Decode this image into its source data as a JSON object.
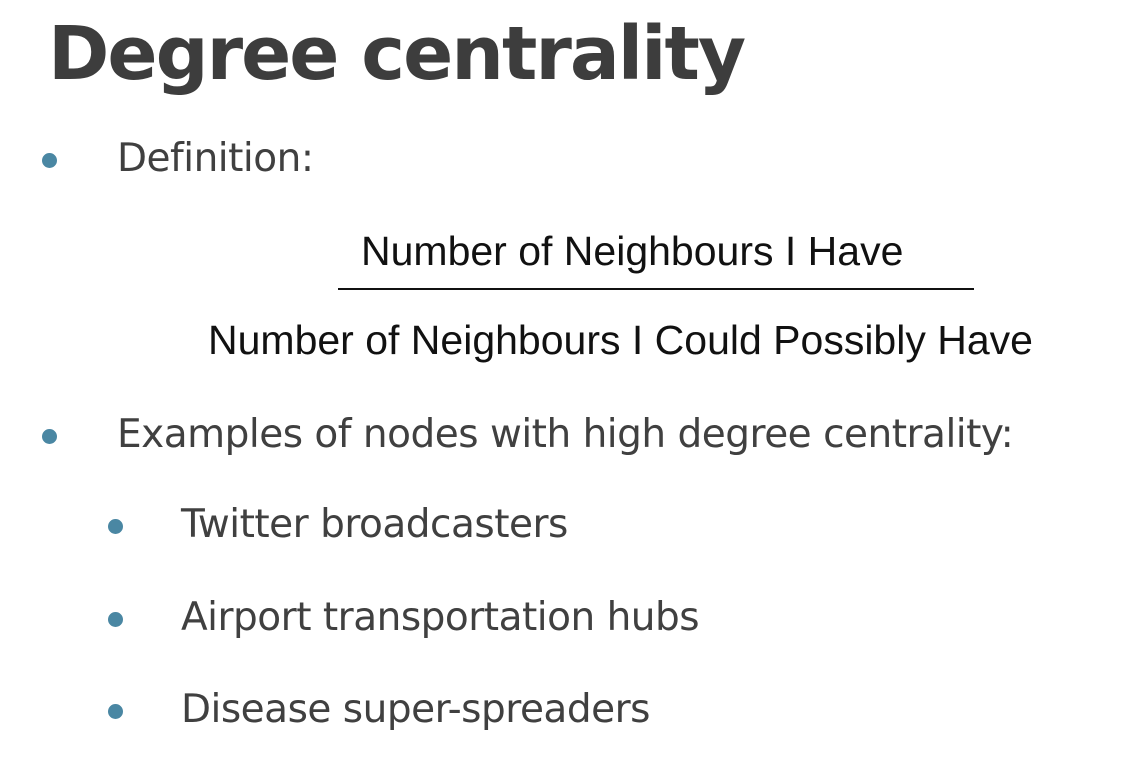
{
  "slide": {
    "title": "Degree centrality",
    "definition_label": "Definition:",
    "formula": {
      "numerator": "Number of Neighbours I Have",
      "denominator": "Number of Neighbours I Could Possibly Have"
    },
    "examples_label": "Examples of nodes with high degree centrality:",
    "examples": [
      "Twitter broadcasters",
      "Airport transportation hubs",
      "Disease super-spreaders"
    ]
  },
  "colors": {
    "bullet": "#4a87a3",
    "text": "#404040",
    "formula_text": "#111111",
    "background": "#ffffff"
  }
}
